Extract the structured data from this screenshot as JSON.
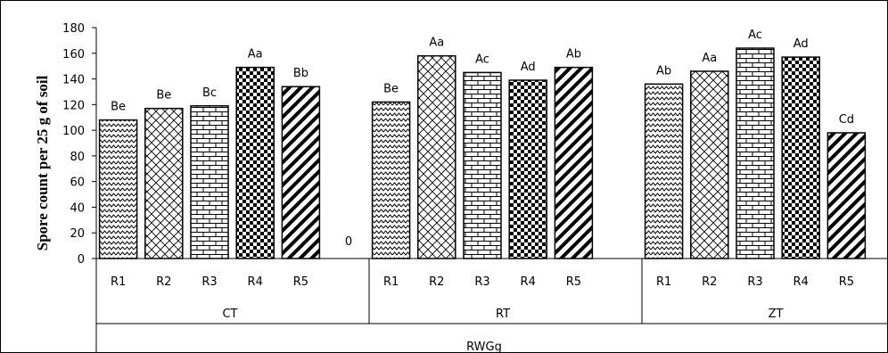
{
  "chart_data": {
    "type": "bar",
    "ylabel": "Spore count per 25 g of soil",
    "ylim": [
      0,
      180
    ],
    "yticks": [
      0,
      20,
      40,
      60,
      80,
      100,
      120,
      140,
      160,
      180
    ],
    "outer_group": "RWGg",
    "zero_label": "0",
    "groups": [
      {
        "name": "CT",
        "categories": [
          "R1",
          "R2",
          "R3",
          "R4",
          "R5"
        ],
        "values": [
          108,
          117,
          119,
          149,
          134
        ],
        "labels": [
          "Be",
          "Be",
          "Bc",
          "Aa",
          "Bb"
        ]
      },
      {
        "name": "RT",
        "categories": [
          "R1",
          "R2",
          "R3",
          "R4",
          "R5"
        ],
        "values": [
          122,
          158,
          145,
          139,
          149
        ],
        "labels": [
          "Be",
          "Aa",
          "Ac",
          "Ad",
          "Ab"
        ]
      },
      {
        "name": "ZT",
        "categories": [
          "R1",
          "R2",
          "R3",
          "R4",
          "R5"
        ],
        "values": [
          136,
          146,
          164,
          157,
          98
        ],
        "labels": [
          "Ab",
          "Aa",
          "Ac",
          "Ad",
          "Cd"
        ]
      }
    ],
    "series_patterns": [
      "wave",
      "crosshatch",
      "brick",
      "checker",
      "diagonal"
    ],
    "grid": false,
    "legend": "none",
    "colors": {
      "stroke": "#000000",
      "fill": "#ffffff",
      "background": "#ffffff"
    }
  }
}
